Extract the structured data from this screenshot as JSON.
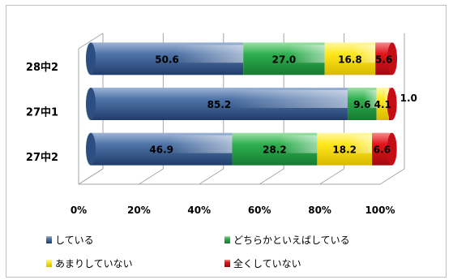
{
  "chart_data": {
    "type": "bar",
    "orientation": "horizontal",
    "stacked": "percent",
    "categories": [
      "28中2",
      "27中1",
      "27中2"
    ],
    "series": [
      {
        "name": "している",
        "values": [
          50.6,
          85.2,
          46.9
        ]
      },
      {
        "name": "どちらかといえばしている",
        "values": [
          27.0,
          9.6,
          28.2
        ]
      },
      {
        "name": "あまりしていない",
        "values": [
          16.8,
          4.1,
          18.2
        ]
      },
      {
        "name": "全くしていない",
        "values": [
          5.6,
          1.0,
          6.6
        ]
      }
    ],
    "data_labels": [
      [
        "50.6",
        "27.0",
        "16.8",
        "5.6"
      ],
      [
        "85.2",
        "9.6",
        "4.1",
        "1.0"
      ],
      [
        "46.9",
        "28.2",
        "18.2",
        "6.6"
      ]
    ],
    "x_ticks": [
      "0%",
      "20%",
      "40%",
      "60%",
      "80%",
      "100%"
    ],
    "xlim": [
      0,
      100
    ],
    "grid": true,
    "legend": "bottom",
    "colors": [
      "#3a5f94",
      "#2fa24f",
      "#ffe21a",
      "#e3141c"
    ]
  }
}
